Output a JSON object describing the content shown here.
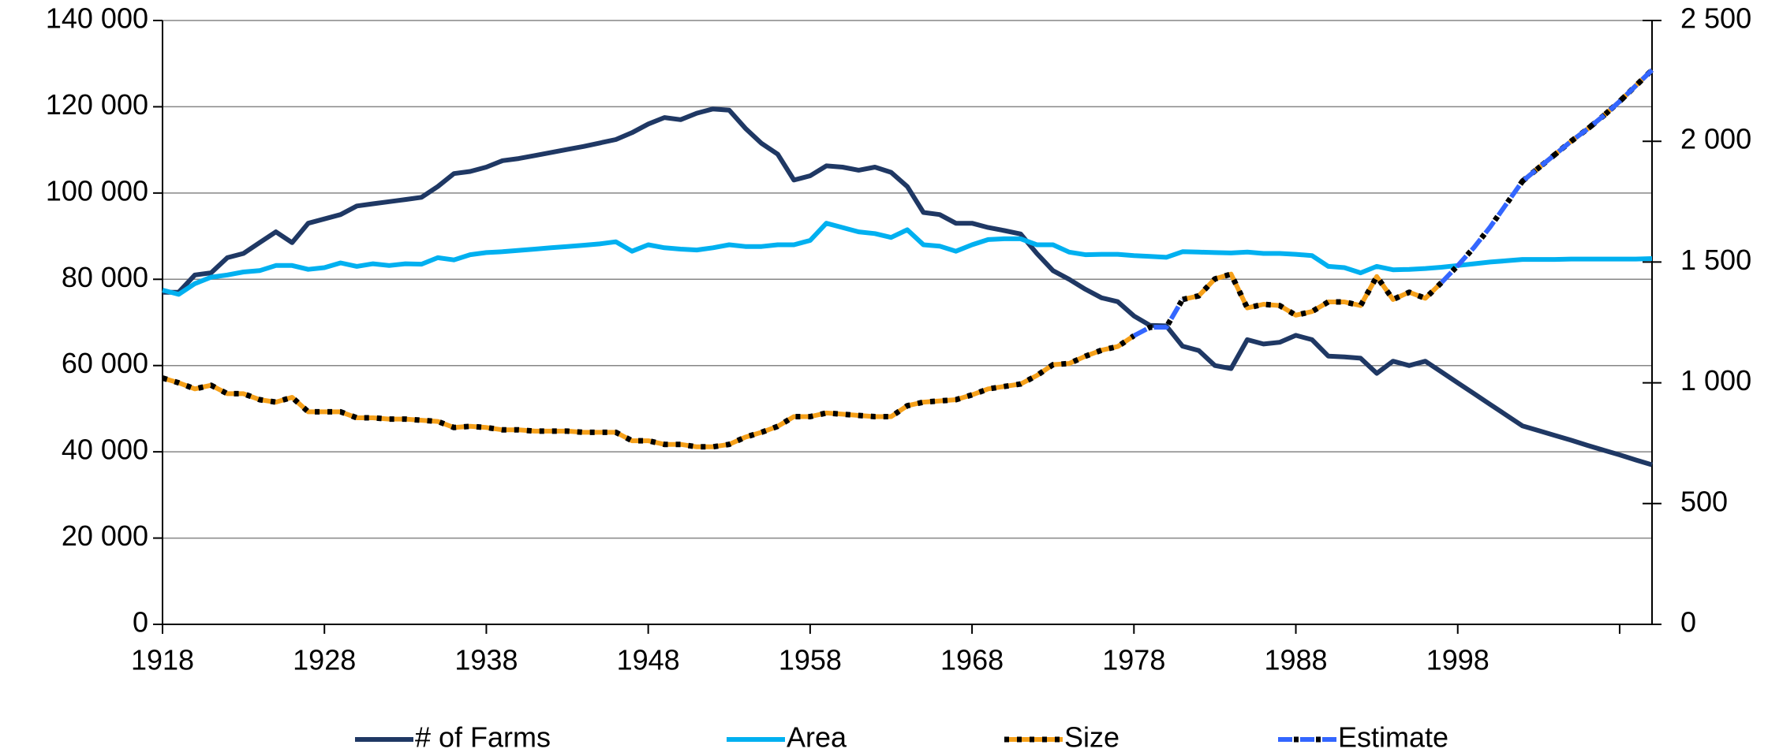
{
  "chart_data": {
    "type": "line",
    "x": [
      1918,
      1919,
      1920,
      1921,
      1922,
      1923,
      1924,
      1925,
      1926,
      1927,
      1928,
      1929,
      1930,
      1931,
      1932,
      1933,
      1934,
      1935,
      1936,
      1937,
      1938,
      1939,
      1940,
      1941,
      1942,
      1943,
      1944,
      1945,
      1946,
      1947,
      1948,
      1949,
      1950,
      1951,
      1952,
      1953,
      1954,
      1955,
      1956,
      1957,
      1958,
      1959,
      1960,
      1961,
      1962,
      1963,
      1964,
      1965,
      1966,
      1967,
      1968,
      1969,
      1970,
      1971,
      1972,
      1973,
      1974,
      1975,
      1976,
      1977,
      1978,
      1979,
      1980,
      1981,
      1982,
      1983,
      1984,
      1985,
      1986,
      1987,
      1988,
      1989,
      1990,
      1991,
      1992,
      1993,
      1994,
      1995,
      1996,
      1997,
      1998,
      1999,
      2000,
      2001,
      2002,
      2003,
      2004,
      2005,
      2006,
      2007,
      2008,
      2009,
      2010
    ],
    "series": [
      {
        "name": "# of Farms",
        "color": "#1f3864",
        "style": "solid",
        "values": [
          77000,
          77000,
          81000,
          81500,
          85000,
          86000,
          88500,
          91000,
          88500,
          93000,
          94000,
          95000,
          97000,
          97500,
          98000,
          98500,
          99000,
          101500,
          104500,
          105000,
          106000,
          107500,
          108000,
          108700,
          109400,
          110100,
          110800,
          111600,
          112400,
          114000,
          116000,
          117500,
          117000,
          118500,
          119500,
          119200,
          115000,
          111500,
          109000,
          103000,
          104000,
          106300,
          106000,
          105300,
          106000,
          104800,
          101500,
          95500,
          95000,
          93000,
          93000,
          92000,
          91300,
          90500,
          86000,
          82000,
          80000,
          77700,
          75700,
          74800,
          71500,
          69300,
          69200,
          64500,
          63500,
          60000,
          59300,
          66000,
          65000,
          65400,
          67000,
          66000,
          62200,
          62000,
          61700,
          58200,
          61000,
          60000,
          61000,
          58500,
          56000,
          53500,
          51000,
          48500,
          46000,
          44900,
          43800,
          42700,
          41500,
          40400,
          39300,
          38100,
          37000
        ]
      },
      {
        "name": "Area",
        "color": "#00b0f0",
        "style": "solid",
        "values": [
          77500,
          76500,
          79000,
          80500,
          81000,
          81700,
          82000,
          83200,
          83200,
          82300,
          82700,
          83800,
          83000,
          83600,
          83200,
          83600,
          83500,
          85000,
          84500,
          85700,
          86200,
          86400,
          86700,
          87000,
          87300,
          87600,
          87900,
          88200,
          88700,
          86500,
          88000,
          87300,
          87000,
          86800,
          87300,
          88000,
          87600,
          87600,
          88000,
          88000,
          89000,
          93000,
          92000,
          91000,
          90600,
          89700,
          91500,
          88000,
          87700,
          86500,
          88000,
          89200,
          89400,
          89400,
          88000,
          88000,
          86300,
          85700,
          85800,
          85800,
          85500,
          85300,
          85100,
          86400,
          86300,
          86200,
          86100,
          86300,
          86000,
          86000,
          85800,
          85500,
          83000,
          82700,
          81500,
          83000,
          82200,
          82300,
          82500,
          82800,
          83200,
          83600,
          84000,
          84300,
          84600,
          84600,
          84600,
          84700,
          84700,
          84700,
          84700,
          84700,
          84800
        ]
      },
      {
        "name": "Size",
        "color": "#f5a01a",
        "style": "solid-dotted",
        "axis": "y2",
        "values": [
          1020,
          1000,
          975,
          990,
          955,
          955,
          930,
          920,
          940,
          880,
          880,
          880,
          855,
          855,
          850,
          850,
          845,
          840,
          815,
          820,
          815,
          805,
          805,
          800,
          800,
          800,
          795,
          795,
          795,
          760,
          760,
          745,
          745,
          735,
          735,
          745,
          775,
          795,
          820,
          860,
          860,
          875,
          870,
          865,
          860,
          860,
          905,
          920,
          925,
          930,
          950,
          975,
          985,
          995,
          1030,
          1075,
          1080,
          1110,
          1135,
          1150,
          1195,
          null,
          null,
          1345,
          1360,
          1430,
          1450,
          1310,
          1325,
          1320,
          1280,
          1295,
          1335,
          1335,
          1320,
          1440,
          1345,
          1375,
          1350,
          1415,
          null,
          null,
          null,
          null,
          1835,
          1890,
          1945,
          2000,
          2050,
          2105,
          2165,
          2230,
          2295
        ]
      },
      {
        "name": "Estimate",
        "color": "#3366ff",
        "style": "dashed",
        "axis": "y2",
        "values": [
          null,
          null,
          null,
          null,
          null,
          null,
          null,
          null,
          null,
          null,
          null,
          null,
          null,
          null,
          null,
          null,
          null,
          null,
          null,
          null,
          null,
          null,
          null,
          null,
          null,
          null,
          null,
          null,
          null,
          null,
          null,
          null,
          null,
          null,
          null,
          null,
          null,
          null,
          null,
          null,
          null,
          null,
          null,
          null,
          null,
          null,
          null,
          null,
          null,
          null,
          null,
          null,
          null,
          null,
          null,
          null,
          null,
          null,
          null,
          null,
          1195,
          1230,
          1230,
          1345,
          null,
          null,
          null,
          null,
          null,
          null,
          null,
          null,
          null,
          null,
          null,
          null,
          null,
          null,
          null,
          1415,
          1485,
          1560,
          1645,
          1740,
          1835,
          1890,
          1945,
          2000,
          2050,
          2105,
          2165,
          2230,
          2295
        ]
      }
    ],
    "xlim": [
      1918,
      2010
    ],
    "xticks": [
      1918,
      1928,
      1938,
      1948,
      1958,
      1968,
      1978,
      1988,
      1998,
      {
        "value": 2008
      }
    ],
    "ylim": [
      0,
      140000
    ],
    "yticks": [
      0,
      {
        "value": 20000,
        "label": "20 000"
      },
      {
        "value": 40000,
        "label": "40 000"
      },
      {
        "value": 60000,
        "label": "60 000"
      },
      {
        "value": 80000,
        "label": "80 000"
      },
      {
        "value": 100000,
        "label": "100 000"
      },
      {
        "value": 120000,
        "label": "120 000"
      },
      {
        "value": 140000,
        "label": "140 000"
      }
    ],
    "y2lim": [
      0,
      2500
    ],
    "y2ticks": [
      0,
      500,
      {
        "value": 1000,
        "label": "1 000"
      },
      {
        "value": 1500,
        "label": "1 500"
      },
      {
        "value": 2000,
        "label": "2 000"
      },
      {
        "value": 2500,
        "label": "2 500"
      }
    ],
    "grid": true,
    "legend": "bottom"
  }
}
